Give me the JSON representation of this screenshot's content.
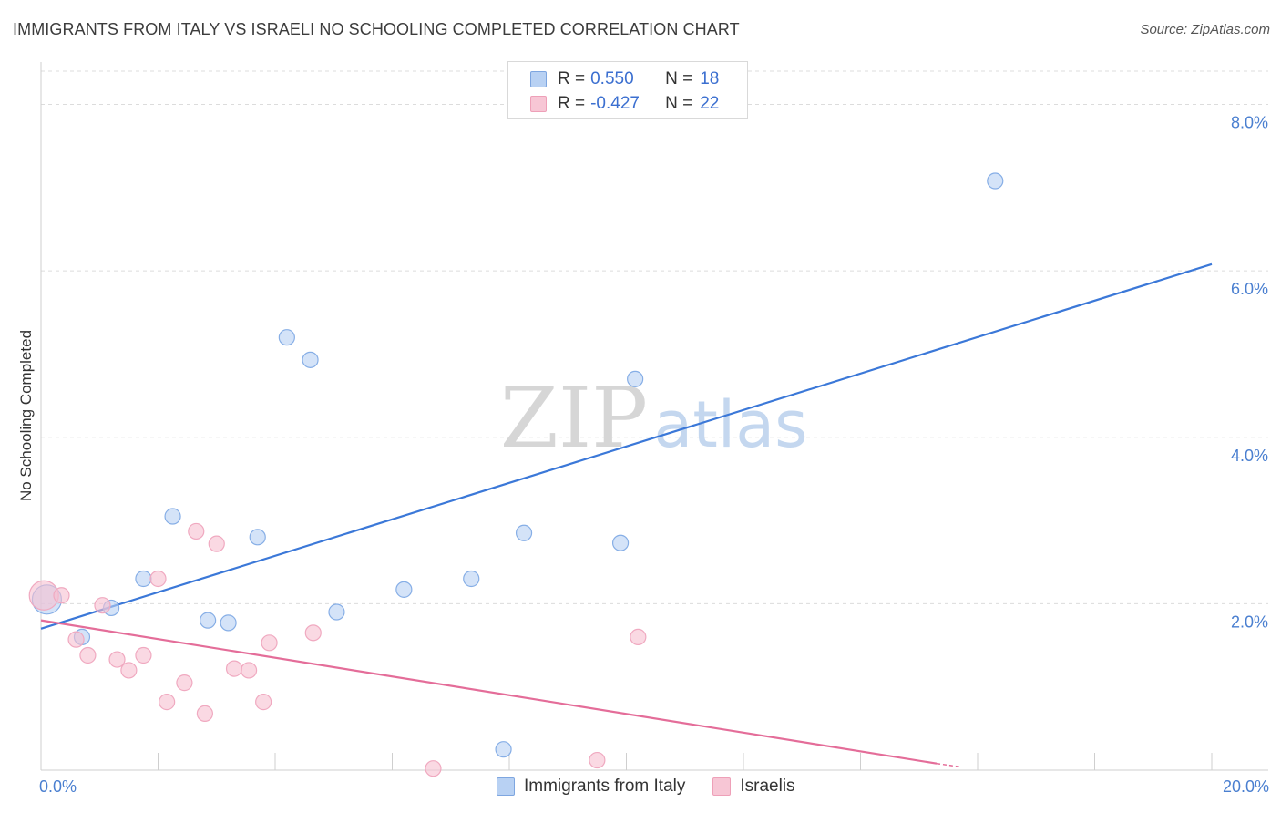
{
  "header": {
    "title": "IMMIGRANTS FROM ITALY VS ISRAELI NO SCHOOLING COMPLETED CORRELATION CHART",
    "source": "Source: ZipAtlas.com"
  },
  "watermark": {
    "zip": "ZIP",
    "atlas": "atlas"
  },
  "legend": {
    "rows": [
      {
        "r_label": "R =",
        "r_value": "0.550",
        "n_label": "N =",
        "n_value": "18"
      },
      {
        "r_label": "R =",
        "r_value": "-0.427",
        "n_label": "N =",
        "n_value": "22"
      }
    ]
  },
  "colors": {
    "blue": "#3b78d8",
    "blue_fill": "#b8d1f3",
    "pink": "#e46d99",
    "pink_fill": "#f7bfd0",
    "axis_text": "#4a7fd0"
  },
  "chart_data": {
    "type": "scatter",
    "title": "IMMIGRANTS FROM ITALY VS ISRAELI NO SCHOOLING COMPLETED CORRELATION CHART",
    "xlabel": "",
    "ylabel": "No Schooling Completed",
    "xlim": [
      0,
      20
    ],
    "ylim": [
      0,
      8.4
    ],
    "x_tick_labels": [
      "0.0%",
      "20.0%"
    ],
    "y_ticks": [
      2,
      4,
      6,
      8
    ],
    "y_tick_labels": [
      "2.0%",
      "4.0%",
      "6.0%",
      "8.0%"
    ],
    "grid": true,
    "series": [
      {
        "name": "Immigrants from Italy",
        "color": "#3b78d8",
        "points": [
          {
            "x": 0.1,
            "y": 2.05,
            "big": true
          },
          {
            "x": 0.7,
            "y": 1.6
          },
          {
            "x": 1.2,
            "y": 1.95
          },
          {
            "x": 1.75,
            "y": 2.3
          },
          {
            "x": 2.25,
            "y": 3.05
          },
          {
            "x": 2.85,
            "y": 1.8
          },
          {
            "x": 3.2,
            "y": 1.77
          },
          {
            "x": 3.7,
            "y": 2.8
          },
          {
            "x": 4.2,
            "y": 5.2
          },
          {
            "x": 4.6,
            "y": 4.93
          },
          {
            "x": 5.05,
            "y": 1.9
          },
          {
            "x": 6.2,
            "y": 2.17
          },
          {
            "x": 7.35,
            "y": 2.3
          },
          {
            "x": 7.9,
            "y": 0.25
          },
          {
            "x": 8.25,
            "y": 2.85
          },
          {
            "x": 9.9,
            "y": 2.73
          },
          {
            "x": 10.15,
            "y": 4.7
          },
          {
            "x": 16.3,
            "y": 7.08
          }
        ],
        "trend": {
          "x": [
            0,
            20
          ],
          "y": [
            1.7,
            6.08
          ]
        }
      },
      {
        "name": "Israelis",
        "color": "#e46d99",
        "points": [
          {
            "x": 0.05,
            "y": 2.1,
            "big": true
          },
          {
            "x": 0.35,
            "y": 2.1
          },
          {
            "x": 0.6,
            "y": 1.57
          },
          {
            "x": 0.8,
            "y": 1.38
          },
          {
            "x": 1.05,
            "y": 1.98
          },
          {
            "x": 1.3,
            "y": 1.33
          },
          {
            "x": 1.5,
            "y": 1.2
          },
          {
            "x": 1.75,
            "y": 1.38
          },
          {
            "x": 2.0,
            "y": 2.3
          },
          {
            "x": 2.15,
            "y": 0.82
          },
          {
            "x": 2.45,
            "y": 1.05
          },
          {
            "x": 2.65,
            "y": 2.87
          },
          {
            "x": 2.8,
            "y": 0.68
          },
          {
            "x": 3.0,
            "y": 2.72
          },
          {
            "x": 3.3,
            "y": 1.22
          },
          {
            "x": 3.55,
            "y": 1.2
          },
          {
            "x": 3.8,
            "y": 0.82
          },
          {
            "x": 3.9,
            "y": 1.53
          },
          {
            "x": 4.65,
            "y": 1.65
          },
          {
            "x": 6.7,
            "y": 0.02
          },
          {
            "x": 9.5,
            "y": 0.12
          },
          {
            "x": 10.2,
            "y": 1.6
          }
        ],
        "trend": {
          "x": [
            0,
            15.3
          ],
          "y": [
            1.8,
            0.08
          ]
        },
        "trend_dashed": {
          "x": [
            15.3,
            15.7
          ],
          "y": [
            0.08,
            0.04
          ]
        }
      }
    ]
  },
  "bottom_legend": {
    "items": [
      {
        "label": "Immigrants from Italy"
      },
      {
        "label": "Israelis"
      }
    ]
  }
}
